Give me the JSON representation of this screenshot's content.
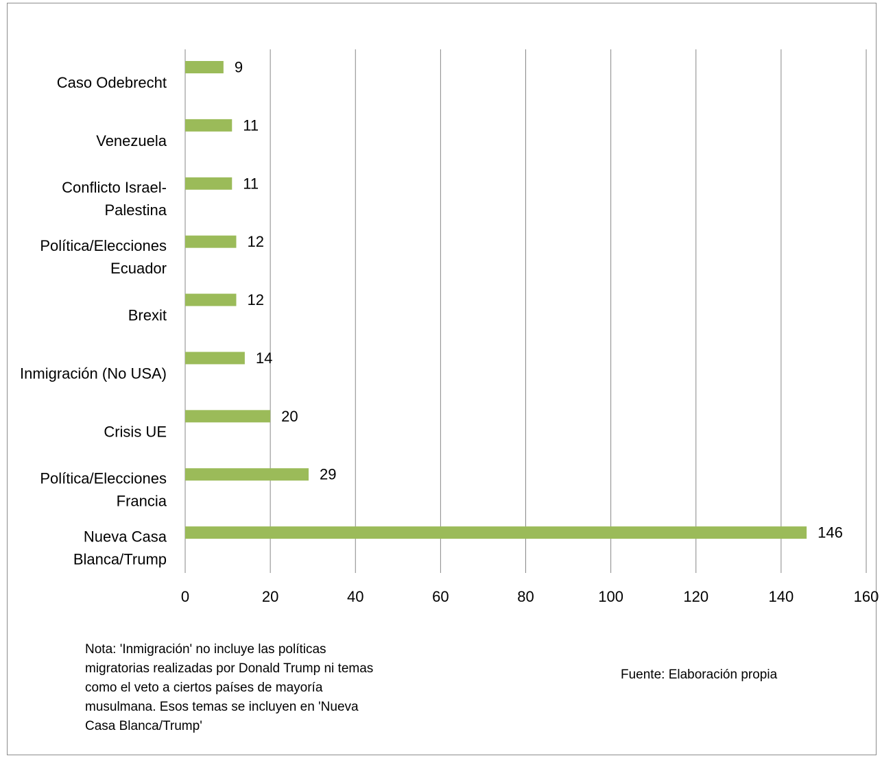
{
  "chart_data": {
    "type": "bar",
    "orientation": "horizontal",
    "title": "",
    "xlabel": "",
    "ylabel": "",
    "categories": [
      [
        "Caso Odebrecht"
      ],
      [
        "Venezuela"
      ],
      [
        "Conflicto Israel-",
        "Palestina"
      ],
      [
        "Política/Elecciones",
        "Ecuador"
      ],
      [
        "Brexit"
      ],
      [
        "Inmigración (No USA)"
      ],
      [
        "Crisis UE"
      ],
      [
        "Política/Elecciones",
        "Francia"
      ],
      [
        "Nueva Casa",
        "Blanca/Trump"
      ]
    ],
    "values": [
      9,
      11,
      11,
      12,
      12,
      14,
      20,
      29,
      146
    ],
    "value_labels": [
      "9",
      "11",
      "11",
      "12",
      "12",
      "14",
      "20",
      "29",
      "146"
    ],
    "xlim": [
      0,
      160
    ],
    "xticks": [
      "0",
      "20",
      "40",
      "60",
      "80",
      "100",
      "120",
      "140",
      "160"
    ],
    "grid": "vertical",
    "legend": "none",
    "bar_color": "#9bbb59",
    "grid_color": "#868686"
  },
  "note": "Nota: 'Inmigración' no incluye las políticas migratorias realizadas por Donald Trump ni temas como el veto a ciertos países de mayoría musulmana. Esos temas se incluyen en 'Nueva Casa Blanca/Trump'",
  "source": "Fuente: Elaboración propia"
}
